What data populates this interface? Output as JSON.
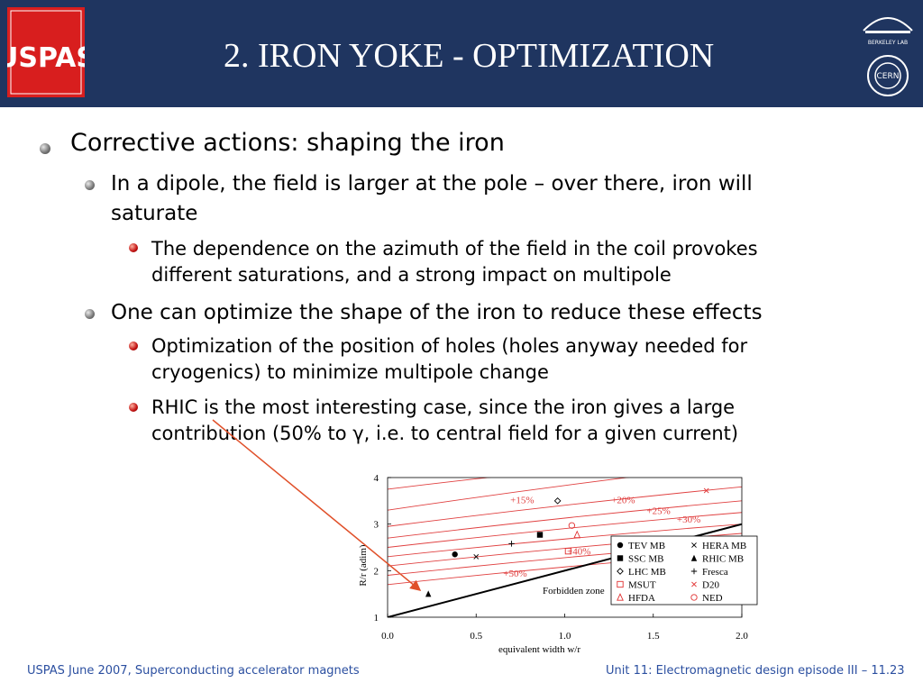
{
  "header": {
    "title": "2. IRON YOKE - OPTIMIZATION",
    "logo_left_text": "USPAS",
    "logo_right_top_text": "BERKELEY LAB",
    "logo_right_bottom_text": "CERN"
  },
  "bullets": [
    {
      "level": 1,
      "text": "Corrective actions: shaping the iron"
    },
    {
      "level": 2,
      "text": "In a dipole, the field is larger at the pole – over there, iron will saturate"
    },
    {
      "level": 3,
      "text": "The dependence on the azimuth of the field in the coil provokes different saturations, and a strong impact on multipole"
    },
    {
      "level": 2,
      "text": "One can optimize the shape of the iron to reduce these effects"
    },
    {
      "level": 3,
      "text": "Optimization of the position of holes (holes anyway needed for cryogenics) to minimize multipole change"
    },
    {
      "level": 3,
      "text": "RHIC is the most interesting case, since the iron gives a large contribution (50% to γ, i.e. to central field for a given current)"
    }
  ],
  "chart_data": {
    "type": "scatter",
    "xlabel": "equivalent width w/r",
    "ylabel": "R/r (adim)",
    "xlim": [
      0,
      2.0
    ],
    "ylim": [
      1,
      4
    ],
    "x_ticks": [
      "0.0",
      "0.5",
      "1.0",
      "1.5",
      "2.0"
    ],
    "y_ticks": [
      "1",
      "2",
      "3",
      "4"
    ],
    "forbidden_zone_label": "Forbidden zone",
    "boundary_line": [
      [
        0,
        1.0
      ],
      [
        2.0,
        3.0
      ]
    ],
    "curves": [
      {
        "label": "",
        "points": [
          [
            0,
            3.75
          ],
          [
            1.4,
            4.3
          ]
        ]
      },
      {
        "label": "+15%",
        "points": [
          [
            0,
            3.3
          ],
          [
            2.0,
            4.3
          ]
        ]
      },
      {
        "label": "+20%",
        "points": [
          [
            0,
            2.95
          ],
          [
            2.0,
            3.8
          ]
        ]
      },
      {
        "label": "+25%",
        "points": [
          [
            0,
            2.7
          ],
          [
            2.0,
            3.5
          ]
        ]
      },
      {
        "label": "+30%",
        "points": [
          [
            0,
            2.5
          ],
          [
            2.0,
            3.25
          ]
        ]
      },
      {
        "label": "",
        "points": [
          [
            0,
            2.3
          ],
          [
            2.0,
            3.0
          ]
        ]
      },
      {
        "label": "+40%",
        "points": [
          [
            0,
            2.1
          ],
          [
            2.0,
            2.8
          ]
        ]
      },
      {
        "label": "",
        "points": [
          [
            0,
            1.9
          ],
          [
            2.0,
            2.6
          ]
        ]
      },
      {
        "label": "+50%",
        "points": [
          [
            0,
            1.7
          ],
          [
            2.0,
            2.4
          ]
        ]
      }
    ],
    "curve_labels_at": [
      {
        "text": "+15%",
        "x": 0.76,
        "y": 3.45
      },
      {
        "text": "+20%",
        "x": 1.33,
        "y": 3.45
      },
      {
        "text": "+25%",
        "x": 1.53,
        "y": 3.22
      },
      {
        "text": "+30%",
        "x": 1.7,
        "y": 3.03
      },
      {
        "text": "+40%",
        "x": 1.08,
        "y": 2.35
      },
      {
        "text": "+50%",
        "x": 0.72,
        "y": 1.87
      }
    ],
    "series": [
      {
        "name": "TEV MB",
        "marker": "filled-circle",
        "x": 0.38,
        "y": 2.35
      },
      {
        "name": "HERA MB",
        "marker": "x",
        "x": 0.5,
        "y": 2.3
      },
      {
        "name": "SSC MB",
        "marker": "filled-square",
        "x": 0.86,
        "y": 2.77
      },
      {
        "name": "RHIC MB",
        "marker": "filled-triangle",
        "x": 0.23,
        "y": 1.5
      },
      {
        "name": "LHC MB",
        "marker": "open-diamond",
        "x": 0.96,
        "y": 3.5
      },
      {
        "name": "Fresca",
        "marker": "plus",
        "x": 0.7,
        "y": 2.58
      },
      {
        "name": "MSUT",
        "marker": "open-square",
        "x": 1.02,
        "y": 2.42
      },
      {
        "name": "D20",
        "marker": "red-x",
        "x": 1.8,
        "y": 3.72
      },
      {
        "name": "HFDA",
        "marker": "open-triangle",
        "x": 1.07,
        "y": 2.77
      },
      {
        "name": "NED",
        "marker": "open-circle",
        "x": 1.04,
        "y": 2.97
      }
    ],
    "legend_placement": "bottom-right",
    "colors": {
      "curves": "#e04040",
      "boundary": "#000000",
      "arrow": "#e0502a"
    }
  },
  "footer": {
    "left": "USPAS June  2007,  Superconducting accelerator magnets",
    "right": "Unit 11: Electromagnetic design episode III – 11.23"
  }
}
